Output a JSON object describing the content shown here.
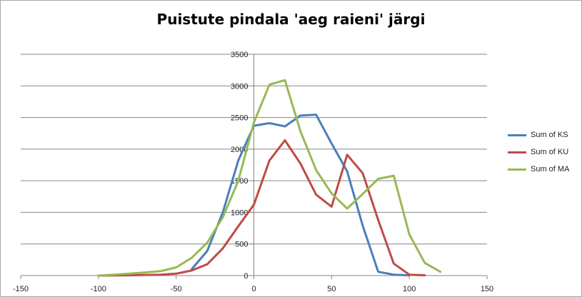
{
  "chart_data": {
    "type": "line",
    "title": "Puistute pindala 'aeg raieni' järgi",
    "xlabel": "",
    "ylabel": "",
    "xlim": [
      -150,
      150
    ],
    "ylim": [
      0,
      3500
    ],
    "xticks": [
      -150,
      -100,
      -50,
      0,
      50,
      100,
      150
    ],
    "yticks": [
      0,
      500,
      1000,
      1500,
      2000,
      2500,
      3000,
      3500
    ],
    "grid": "horizontal",
    "legend_position": "right",
    "series": [
      {
        "name": "Sum of KS",
        "color": "#4a7ebb",
        "points": [
          [
            -40,
            100
          ],
          [
            -30,
            390
          ],
          [
            -20,
            1000
          ],
          [
            -10,
            1820
          ],
          [
            0,
            2370
          ],
          [
            10,
            2410
          ],
          [
            20,
            2360
          ],
          [
            30,
            2530
          ],
          [
            40,
            2545
          ],
          [
            50,
            2090
          ],
          [
            60,
            1650
          ],
          [
            70,
            790
          ],
          [
            80,
            60
          ],
          [
            90,
            15
          ],
          [
            100,
            5
          ]
        ]
      },
      {
        "name": "Sum of KU",
        "color": "#be4b48",
        "points": [
          [
            -100,
            0
          ],
          [
            -80,
            5
          ],
          [
            -70,
            10
          ],
          [
            -60,
            15
          ],
          [
            -50,
            30
          ],
          [
            -40,
            80
          ],
          [
            -30,
            180
          ],
          [
            -20,
            430
          ],
          [
            -10,
            780
          ],
          [
            0,
            1120
          ],
          [
            10,
            1820
          ],
          [
            20,
            2140
          ],
          [
            30,
            1770
          ],
          [
            40,
            1280
          ],
          [
            50,
            1090
          ],
          [
            60,
            1910
          ],
          [
            70,
            1620
          ],
          [
            80,
            880
          ],
          [
            90,
            190
          ],
          [
            100,
            15
          ],
          [
            110,
            5
          ]
        ]
      },
      {
        "name": "Sum of MA",
        "color": "#98b954",
        "points": [
          [
            -100,
            0
          ],
          [
            -90,
            15
          ],
          [
            -80,
            30
          ],
          [
            -70,
            50
          ],
          [
            -60,
            70
          ],
          [
            -50,
            130
          ],
          [
            -40,
            280
          ],
          [
            -30,
            520
          ],
          [
            -20,
            920
          ],
          [
            -10,
            1500
          ],
          [
            0,
            2420
          ],
          [
            10,
            3020
          ],
          [
            20,
            3090
          ],
          [
            30,
            2280
          ],
          [
            40,
            1670
          ],
          [
            50,
            1300
          ],
          [
            60,
            1060
          ],
          [
            70,
            1290
          ],
          [
            80,
            1530
          ],
          [
            90,
            1580
          ],
          [
            100,
            650
          ],
          [
            110,
            200
          ],
          [
            120,
            60
          ]
        ]
      }
    ]
  }
}
